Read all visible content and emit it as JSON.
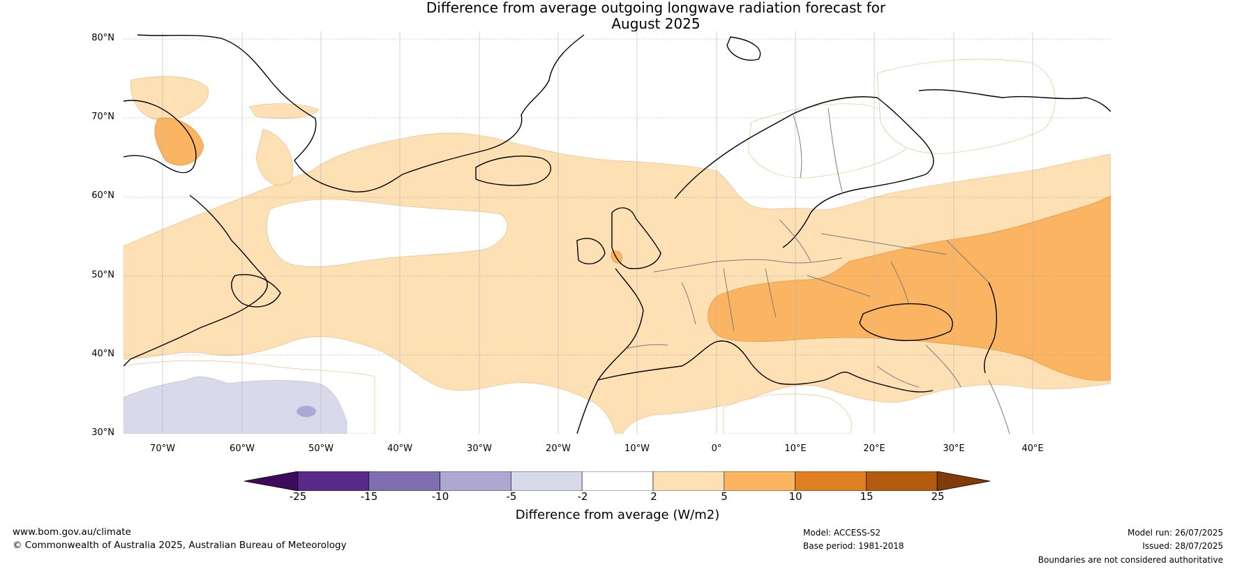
{
  "title_line1": "Difference from average outgoing longwave radiation forecast for",
  "title_line2": "August 2025",
  "lat_labels": [
    "80°N",
    "70°N",
    "60°N",
    "50°N",
    "40°N",
    "30°N"
  ],
  "lon_labels": [
    "70°W",
    "60°W",
    "50°W",
    "40°W",
    "30°W",
    "20°W",
    "10°W",
    "0°",
    "10°E",
    "20°E",
    "30°E",
    "40°E"
  ],
  "colorbar": {
    "ticks": [
      "-25",
      "-15",
      "-10",
      "-5",
      "-2",
      "2",
      "5",
      "10",
      "15",
      "25"
    ],
    "colors": [
      "#3d0a5c",
      "#5a2a8a",
      "#7f6fb0",
      "#aea7d2",
      "#d8d9eb",
      "#ffffff",
      "#fde0b4",
      "#fbb562",
      "#e07f1f",
      "#b35a0e",
      "#7f3b08"
    ],
    "label": "Difference from average (W/m2)"
  },
  "footer": {
    "website": "www.bom.gov.au/climate",
    "copyright": "© Commonwealth of Australia 2025, Australian Bureau of Meteorology",
    "model": "Model: ACCESS-S2",
    "base_period": "Base period: 1981-2018",
    "model_run": "Model run: 26/07/2025",
    "issued": "Issued: 28/07/2025",
    "disclaimer": "Boundaries are not considered authoritative"
  }
}
